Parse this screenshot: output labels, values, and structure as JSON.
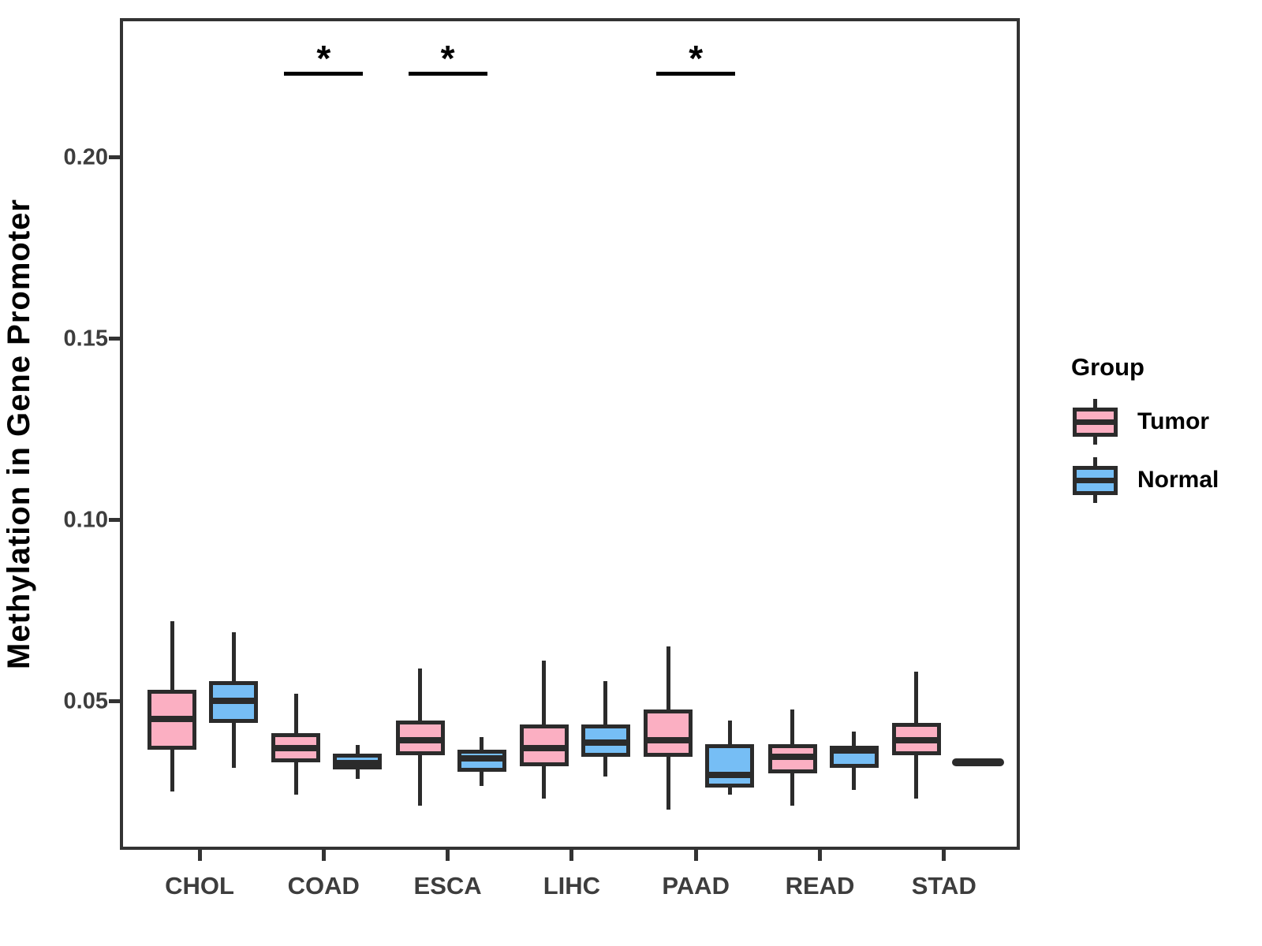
{
  "chart_data": {
    "type": "boxplot",
    "title": "",
    "xlabel": "",
    "ylabel": "Methylation in Gene Promoter",
    "categories": [
      "CHOL",
      "COAD",
      "ESCA",
      "LIHC",
      "PAAD",
      "READ",
      "STAD"
    ],
    "y_ticks": [
      {
        "value": 0.05,
        "label": "0.05"
      },
      {
        "value": 0.1,
        "label": "0.10"
      },
      {
        "value": 0.15,
        "label": "0.15"
      },
      {
        "value": 0.2,
        "label": "0.20"
      }
    ],
    "ylim": [
      0.009,
      0.2385
    ],
    "grid": "off",
    "legend": {
      "title": "Group",
      "position": "right",
      "entries": [
        "Tumor",
        "Normal"
      ]
    },
    "colors": {
      "tumor_fill": "#FBAFC2",
      "normal_fill": "#76BEF5",
      "stroke": "#2b2b2b"
    },
    "series": [
      {
        "name": "Tumor",
        "color": "#FBAFC2",
        "boxes": [
          {
            "category": "CHOL",
            "low": 0.026,
            "q1": 0.0375,
            "median": 0.046,
            "q3": 0.054,
            "high": 0.073
          },
          {
            "category": "COAD",
            "low": 0.025,
            "q1": 0.034,
            "median": 0.038,
            "q3": 0.042,
            "high": 0.053
          },
          {
            "category": "ESCA",
            "low": 0.022,
            "q1": 0.036,
            "median": 0.04,
            "q3": 0.0455,
            "high": 0.06
          },
          {
            "category": "LIHC",
            "low": 0.024,
            "q1": 0.033,
            "median": 0.038,
            "q3": 0.0445,
            "high": 0.062
          },
          {
            "category": "PAAD",
            "low": 0.021,
            "q1": 0.0355,
            "median": 0.04,
            "q3": 0.0485,
            "high": 0.066
          },
          {
            "category": "READ",
            "low": 0.022,
            "q1": 0.031,
            "median": 0.0355,
            "q3": 0.039,
            "high": 0.0485
          },
          {
            "category": "STAD",
            "low": 0.024,
            "q1": 0.036,
            "median": 0.04,
            "q3": 0.045,
            "high": 0.059
          }
        ]
      },
      {
        "name": "Normal",
        "color": "#76BEF5",
        "boxes": [
          {
            "category": "CHOL",
            "low": 0.0325,
            "q1": 0.045,
            "median": 0.051,
            "q3": 0.0565,
            "high": 0.07
          },
          {
            "category": "COAD",
            "low": 0.0295,
            "q1": 0.032,
            "median": 0.0337,
            "q3": 0.0365,
            "high": 0.0387
          },
          {
            "category": "ESCA",
            "low": 0.0275,
            "q1": 0.0315,
            "median": 0.035,
            "q3": 0.0375,
            "high": 0.041
          },
          {
            "category": "LIHC",
            "low": 0.03,
            "q1": 0.0355,
            "median": 0.0395,
            "q3": 0.0445,
            "high": 0.0565
          },
          {
            "category": "PAAD",
            "low": 0.025,
            "q1": 0.027,
            "median": 0.0305,
            "q3": 0.039,
            "high": 0.0455
          },
          {
            "category": "READ",
            "low": 0.0265,
            "q1": 0.0325,
            "median": 0.0372,
            "q3": 0.0385,
            "high": 0.0425
          },
          {
            "category": "STAD",
            "flat": true,
            "median": 0.034
          }
        ]
      }
    ],
    "significance": [
      {
        "category": "COAD",
        "label": "*"
      },
      {
        "category": "ESCA",
        "label": "*"
      },
      {
        "category": "PAAD",
        "label": "*"
      }
    ],
    "significance_bar_value": 0.2237
  }
}
